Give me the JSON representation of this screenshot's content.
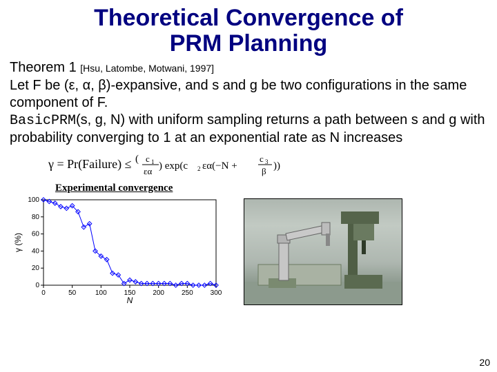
{
  "title_line1": "Theoretical Convergence of",
  "title_line2": "PRM Planning",
  "theorem_label": "Theorem 1",
  "citation": "[Hsu, Latombe, Motwani, 1997]",
  "body_p1": "Let F be (ε, α, β)-expansive, and s and g be two configurations in the same component of F.",
  "body_fn": "BasicPRM",
  "body_p2a": "(s, g, N) with uniform sampling returns a path between s and g with probability converging to 1 at an exponential rate as N increases",
  "formula_lhs": "γ = Pr(Failure) ≤",
  "formula_img_alt": "(c1 / (ε α)) exp(c2 ε α (−N + c3/β))",
  "exp_label": "Experimental convergence",
  "page_number": "20",
  "chart": {
    "type": "line-scatter",
    "xlabel": "N",
    "ylabel": "γ (%)",
    "xlim": [
      0,
      300
    ],
    "ylim": [
      0,
      100
    ],
    "xtick_step": 50,
    "ytick_step": 20,
    "marker": "diamond-open",
    "marker_color": "#0000ff",
    "line_color": "#0000ff",
    "axis_color": "#000000",
    "background_color": "#ffffff",
    "tick_fontsize": 10,
    "label_fontsize": 12,
    "points": [
      {
        "x": 0,
        "y": 100
      },
      {
        "x": 10,
        "y": 98
      },
      {
        "x": 20,
        "y": 96
      },
      {
        "x": 30,
        "y": 92
      },
      {
        "x": 40,
        "y": 90
      },
      {
        "x": 50,
        "y": 93
      },
      {
        "x": 60,
        "y": 86
      },
      {
        "x": 70,
        "y": 68
      },
      {
        "x": 80,
        "y": 72
      },
      {
        "x": 90,
        "y": 40
      },
      {
        "x": 100,
        "y": 34
      },
      {
        "x": 110,
        "y": 30
      },
      {
        "x": 120,
        "y": 14
      },
      {
        "x": 130,
        "y": 12
      },
      {
        "x": 140,
        "y": 2
      },
      {
        "x": 150,
        "y": 6
      },
      {
        "x": 160,
        "y": 4
      },
      {
        "x": 170,
        "y": 2
      },
      {
        "x": 180,
        "y": 2
      },
      {
        "x": 190,
        "y": 2
      },
      {
        "x": 200,
        "y": 2
      },
      {
        "x": 210,
        "y": 2
      },
      {
        "x": 220,
        "y": 2
      },
      {
        "x": 230,
        "y": 0
      },
      {
        "x": 240,
        "y": 2
      },
      {
        "x": 250,
        "y": 2
      },
      {
        "x": 260,
        "y": 0
      },
      {
        "x": 270,
        "y": 0
      },
      {
        "x": 280,
        "y": 0
      },
      {
        "x": 290,
        "y": 2
      },
      {
        "x": 300,
        "y": 0
      }
    ]
  },
  "robot_image": {
    "alt": "simulated robot arm over a drill-press workbench",
    "base_color": "#6b7a6c",
    "arm_color": "#bfbfbf",
    "press_color": "#5a6a50",
    "ground_color": "#9aa79b"
  }
}
